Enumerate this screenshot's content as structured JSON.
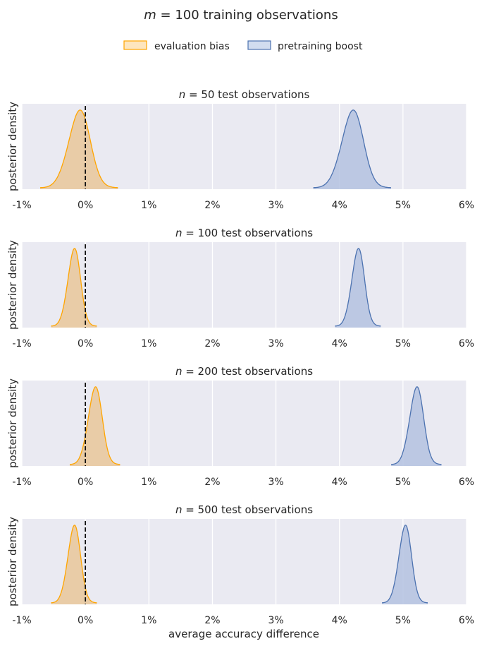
{
  "figure": {
    "title_prefix": "m",
    "title_suffix": " = 100 training observations",
    "legend": {
      "evaluation_bias": "evaluation bias",
      "pretraining_boost": "pretraining boost"
    },
    "xlabel": "average accuracy difference"
  },
  "colors": {
    "panel_bg": "#eaeaf2",
    "grid": "#ffffff",
    "bias_line": "#ffa500",
    "bias_fill": "#e9c79a",
    "boost_line": "#4c72b0",
    "boost_fill": "#b4c2e0",
    "zero_line": "#111111"
  },
  "chart_data": [
    {
      "type": "area",
      "title_prefix": "n",
      "title_suffix": " = 50 test observations",
      "xlabel": "",
      "ylabel": "posterior density",
      "xlim": [
        -1,
        6
      ],
      "xtick_labels": [
        "-1%",
        "0%",
        "1%",
        "2%",
        "3%",
        "4%",
        "5%",
        "6%"
      ],
      "xticks": [
        -1,
        0,
        1,
        2,
        3,
        4,
        5,
        6
      ],
      "reference_line_x": 0,
      "series": [
        {
          "name": "evaluation bias",
          "center": -0.1,
          "sd": 0.17,
          "peak": 0.97
        },
        {
          "name": "pretraining boost",
          "center": 4.2,
          "sd": 0.17,
          "peak": 0.97
        }
      ]
    },
    {
      "type": "area",
      "title_prefix": "n",
      "title_suffix": " = 100 test observations",
      "xlabel": "",
      "ylabel": "posterior density",
      "xlim": [
        -1,
        6
      ],
      "xtick_labels": [
        "-1%",
        "0%",
        "1%",
        "2%",
        "3%",
        "4%",
        "5%",
        "6%"
      ],
      "xticks": [
        -1,
        0,
        1,
        2,
        3,
        4,
        5,
        6
      ],
      "reference_line_x": 0,
      "series": [
        {
          "name": "evaluation bias",
          "center": -0.18,
          "sd": 0.1,
          "peak": 0.97
        },
        {
          "name": "pretraining boost",
          "center": 4.29,
          "sd": 0.1,
          "peak": 0.97
        }
      ]
    },
    {
      "type": "area",
      "title_prefix": "n",
      "title_suffix": " = 200 test observations",
      "xlabel": "",
      "ylabel": "posterior density",
      "xlim": [
        -1,
        6
      ],
      "xtick_labels": [
        "-1%",
        "0%",
        "1%",
        "2%",
        "3%",
        "4%",
        "5%",
        "6%"
      ],
      "xticks": [
        -1,
        0,
        1,
        2,
        3,
        4,
        5,
        6
      ],
      "reference_line_x": 0,
      "series": [
        {
          "name": "evaluation bias",
          "center": 0.15,
          "sd": 0.11,
          "peak": 0.97
        },
        {
          "name": "pretraining boost",
          "center": 5.21,
          "sd": 0.11,
          "peak": 0.97
        }
      ]
    },
    {
      "type": "area",
      "title_prefix": "n",
      "title_suffix": " = 500 test observations",
      "xlabel": "average accuracy difference",
      "ylabel": "posterior density",
      "xlim": [
        -1,
        6
      ],
      "xtick_labels": [
        "-1%",
        "0%",
        "1%",
        "2%",
        "3%",
        "4%",
        "5%",
        "6%"
      ],
      "xticks": [
        -1,
        0,
        1,
        2,
        3,
        4,
        5,
        6
      ],
      "reference_line_x": 0,
      "series": [
        {
          "name": "evaluation bias",
          "center": -0.18,
          "sd": 0.1,
          "peak": 0.97
        },
        {
          "name": "pretraining boost",
          "center": 5.03,
          "sd": 0.1,
          "peak": 0.97
        }
      ]
    }
  ]
}
